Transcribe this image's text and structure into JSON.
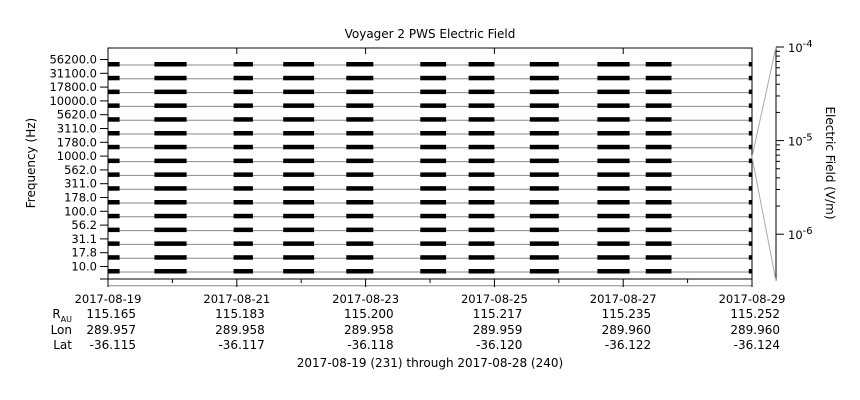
{
  "chart_data": {
    "type": "heatmap",
    "title": "Voyager 2 PWS Electric Field",
    "ylabel": "Frequency (Hz)",
    "colorbar_label": "Electric Field (V/m)",
    "colorbar_ticks": [
      "10",
      "10",
      "10"
    ],
    "colorbar_exponents": [
      "-4",
      "-5",
      "-6"
    ],
    "colorbar_tick_values": [
      0.0001,
      1e-05,
      1e-06
    ],
    "colorbar_scale": "log",
    "y_scale": "log",
    "channels_hz": [
      "56200.0",
      "31100.0",
      "17800.0",
      "10000.0",
      "5620.0",
      "3110.0",
      "1780.0",
      "1000.0",
      "562.0",
      "311.0",
      "178.0",
      "100.0",
      "56.2",
      "31.1",
      "17.8",
      "10.0"
    ],
    "x_ticks": [
      "2017-08-19",
      "2017-08-21",
      "2017-08-23",
      "2017-08-25",
      "2017-08-27",
      "2017-08-29"
    ],
    "x_range": [
      "2017-08-19",
      "2017-08-29"
    ],
    "ephemeris": {
      "labels": {
        "r": "R",
        "r_sub": "AU",
        "lon": "Lon",
        "lat": "Lat"
      },
      "r_au": [
        "115.165",
        "115.183",
        "115.200",
        "115.217",
        "115.235",
        "115.252"
      ],
      "lon": [
        "289.957",
        "289.958",
        "289.958",
        "289.959",
        "289.960",
        "289.960"
      ],
      "lat": [
        "-36.115",
        "-36.117",
        "-36.118",
        "-36.120",
        "-36.122",
        "-36.124"
      ]
    },
    "date_range_caption": "2017-08-19 (231) through 2017-08-28 (240)",
    "data_intervals_days": [
      [
        0.0,
        0.18
      ],
      [
        0.72,
        1.22
      ],
      [
        1.95,
        2.25
      ],
      [
        2.72,
        3.2
      ],
      [
        3.7,
        4.12
      ],
      [
        4.85,
        5.25
      ],
      [
        5.6,
        6.0
      ],
      [
        6.55,
        7.0
      ],
      [
        7.6,
        8.1
      ],
      [
        8.35,
        8.75
      ],
      [
        9.95,
        10.0
      ]
    ],
    "colors": {
      "data": "#000000",
      "axis": "#000000",
      "channel_line": "#888888",
      "colorbar_connector": "#aaaaaa"
    }
  }
}
